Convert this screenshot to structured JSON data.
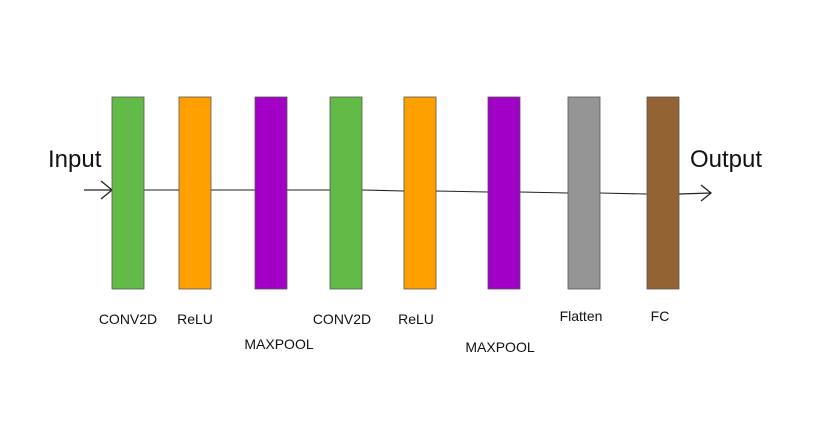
{
  "input_label": "Input",
  "output_label": "Output",
  "layers": [
    {
      "label": "CONV2D",
      "color": "#62bb46"
    },
    {
      "label": "ReLU",
      "color": "#ff9f00"
    },
    {
      "label": "MAXPOOL",
      "color": "#a200c6"
    },
    {
      "label": "CONV2D",
      "color": "#62bb46"
    },
    {
      "label": "ReLU",
      "color": "#ff9f00"
    },
    {
      "label": "MAXPOOL",
      "color": "#a200c6"
    },
    {
      "label": "Flatten",
      "color": "#959595"
    },
    {
      "label": "FC",
      "color": "#936336"
    }
  ],
  "colors": {
    "line": "#222222",
    "border": "#555555"
  }
}
